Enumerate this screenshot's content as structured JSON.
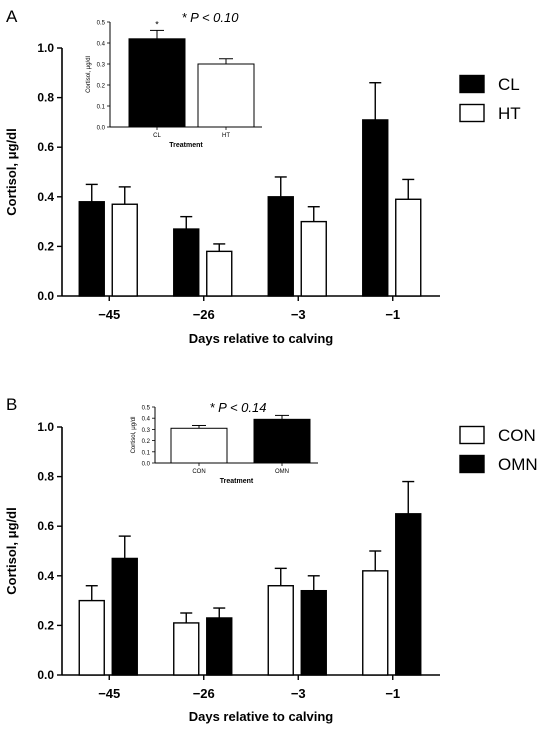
{
  "chart_data": [
    {
      "panel_label": "A",
      "type": "bar",
      "categories": [
        "−45",
        "−26",
        "−3",
        "−1"
      ],
      "xlabel": "Days relative to calving",
      "ylabel": "Cortisol, μg/dl",
      "ylim": [
        0,
        1.0
      ],
      "yticks": [
        "0.0",
        "0.2",
        "0.4",
        "0.6",
        "0.8",
        "1.0"
      ],
      "legend_position": "right",
      "series": [
        {
          "name": "CL",
          "fill": "#000000",
          "values": [
            0.38,
            0.27,
            0.4,
            0.71
          ],
          "errors": [
            0.07,
            0.05,
            0.08,
            0.15
          ]
        },
        {
          "name": "HT",
          "fill": "#ffffff",
          "values": [
            0.37,
            0.18,
            0.3,
            0.39
          ],
          "errors": [
            0.07,
            0.03,
            0.06,
            0.08
          ]
        }
      ],
      "inset": {
        "type": "bar",
        "title": "* P < 0.10",
        "xlabel": "Treatment",
        "ylabel": "Cortisol, μg/dl",
        "ylim": [
          0,
          0.5
        ],
        "yticks": [
          "0.0",
          "0.1",
          "0.2",
          "0.3",
          "0.4",
          "0.5"
        ],
        "categories": [
          "CL",
          "HT"
        ],
        "fills": [
          "#000000",
          "#ffffff"
        ],
        "values": [
          0.42,
          0.3
        ],
        "errors": [
          0.04,
          0.025
        ],
        "marker": "*"
      }
    },
    {
      "panel_label": "B",
      "type": "bar",
      "categories": [
        "−45",
        "−26",
        "−3",
        "−1"
      ],
      "xlabel": "Days relative to calving",
      "ylabel": "Cortisol, μg/dl",
      "ylim": [
        0,
        1.0
      ],
      "yticks": [
        "0.0",
        "0.2",
        "0.4",
        "0.6",
        "0.8",
        "1.0"
      ],
      "legend_position": "right",
      "series": [
        {
          "name": "CON",
          "fill": "#ffffff",
          "values": [
            0.3,
            0.21,
            0.36,
            0.42
          ],
          "errors": [
            0.06,
            0.04,
            0.07,
            0.08
          ]
        },
        {
          "name": "OMN",
          "fill": "#000000",
          "values": [
            0.47,
            0.23,
            0.34,
            0.65
          ],
          "errors": [
            0.09,
            0.04,
            0.06,
            0.13
          ]
        }
      ],
      "inset": {
        "type": "bar",
        "title": "* P < 0.14",
        "xlabel": "Treatment",
        "ylabel": "Cortisol, μg/dl",
        "ylim": [
          0,
          0.5
        ],
        "yticks": [
          "0.0",
          "0.1",
          "0.2",
          "0.3",
          "0.4",
          "0.5"
        ],
        "categories": [
          "CON",
          "OMN"
        ],
        "fills": [
          "#ffffff",
          "#000000"
        ],
        "values": [
          0.31,
          0.39
        ],
        "errors": [
          0.025,
          0.035
        ],
        "marker": ""
      }
    }
  ]
}
